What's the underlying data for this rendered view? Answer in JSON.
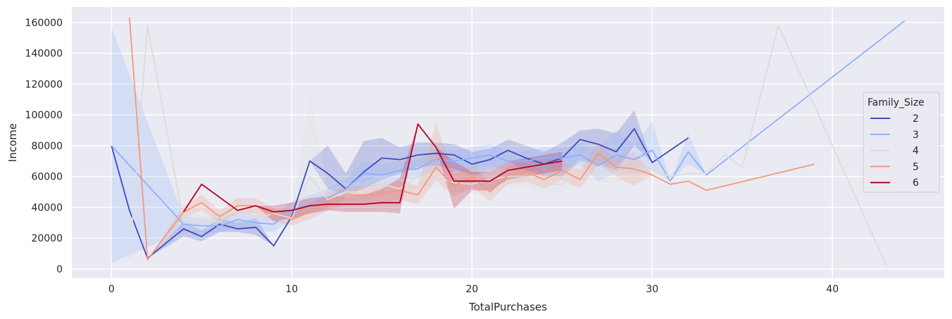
{
  "chart_data": {
    "type": "line",
    "xlabel": "TotalPurchases",
    "ylabel": "Income",
    "xlim": [
      -2.2,
      46.2
    ],
    "ylim": [
      -6000,
      170000
    ],
    "xticks": [
      0,
      10,
      20,
      30,
      40
    ],
    "yticks": [
      0,
      20000,
      40000,
      60000,
      80000,
      100000,
      120000,
      140000,
      160000
    ],
    "grid": true,
    "legend": {
      "title": "Family_Size",
      "placement": "right"
    },
    "series": [
      {
        "name": "2",
        "color": "#3b4cc0",
        "x": [
          0,
          1,
          2,
          4,
          5,
          6,
          7,
          8,
          9,
          10,
          11,
          12,
          13,
          14,
          15,
          16,
          17,
          18,
          19,
          20,
          21,
          22,
          23,
          24,
          25,
          26,
          27,
          28,
          29,
          30,
          31,
          32
        ],
        "y": [
          80000,
          38000,
          7000,
          26000,
          21000,
          29000,
          26000,
          27000,
          15000,
          34000,
          70000,
          62000,
          52000,
          63000,
          72000,
          71000,
          74000,
          75000,
          74000,
          68000,
          71000,
          77000,
          72000,
          68000,
          72000,
          84000,
          81000,
          76000,
          91000,
          69000,
          77000,
          85000
        ],
        "lower": [
          80000,
          38000,
          7000,
          21000,
          18000,
          24000,
          24000,
          22000,
          15000,
          34000,
          70000,
          52000,
          48000,
          52000,
          58000,
          62000,
          66000,
          67000,
          65000,
          61000,
          63000,
          70000,
          64000,
          60000,
          60000,
          70000,
          68000,
          64000,
          80000,
          69000,
          77000,
          85000
        ],
        "upper": [
          80000,
          38000,
          7000,
          31000,
          25000,
          33000,
          30000,
          33000,
          15000,
          34000,
          70000,
          80000,
          62000,
          83000,
          85000,
          79000,
          82000,
          82000,
          81000,
          76000,
          78000,
          84000,
          80000,
          76000,
          82000,
          90000,
          91000,
          88000,
          103000,
          69000,
          77000,
          85000
        ]
      },
      {
        "name": "3",
        "color": "#8db0fe",
        "x": [
          0,
          4,
          5,
          6,
          7,
          8,
          9,
          10,
          12,
          13,
          14,
          15,
          16,
          17,
          18,
          19,
          20,
          21,
          22,
          23,
          24,
          25,
          26,
          27,
          28,
          29,
          30,
          31,
          32,
          33,
          44
        ],
        "y": [
          80000,
          29000,
          28000,
          28000,
          32000,
          30000,
          29000,
          38000,
          46000,
          52000,
          62000,
          61000,
          64000,
          65000,
          71000,
          70000,
          72000,
          74000,
          70000,
          70000,
          72000,
          72000,
          74000,
          67000,
          74000,
          71000,
          77000,
          57000,
          76000,
          61000,
          161000
        ],
        "lower": [
          4000,
          24000,
          23000,
          24000,
          27000,
          25000,
          24000,
          32000,
          40000,
          46000,
          54000,
          54000,
          58000,
          59000,
          64000,
          63000,
          65000,
          67000,
          64000,
          63000,
          65000,
          66000,
          67000,
          57000,
          62000,
          62000,
          64000,
          57000,
          68000,
          61000,
          161000
        ],
        "upper": [
          157000,
          34000,
          33000,
          33000,
          37000,
          35000,
          34000,
          44000,
          52000,
          58000,
          70000,
          68000,
          70000,
          71000,
          78000,
          77000,
          79000,
          81000,
          76000,
          77000,
          79000,
          78000,
          81000,
          77000,
          90000,
          80000,
          96000,
          57000,
          88000,
          61000,
          161000
        ]
      },
      {
        "name": "4",
        "color": "#dddddd",
        "x": [
          1,
          2,
          4,
          5,
          6,
          7,
          8,
          9,
          10,
          11,
          12,
          13,
          14,
          15,
          16,
          17,
          18,
          19,
          20,
          21,
          22,
          23,
          24,
          25,
          26,
          27,
          28,
          29,
          30,
          31,
          32,
          33,
          34,
          35,
          37,
          43
        ],
        "y": [
          7000,
          158000,
          30000,
          30000,
          31000,
          40000,
          33000,
          36000,
          33000,
          60000,
          45000,
          50000,
          50000,
          55000,
          52000,
          60000,
          60000,
          56000,
          55000,
          58000,
          60000,
          60000,
          55000,
          55000,
          65000,
          62000,
          62000,
          65000,
          65000,
          60000,
          62000,
          62000,
          74000,
          66000,
          158000,
          2000
        ],
        "lower": [
          7000,
          158000,
          25000,
          25000,
          27000,
          33000,
          28000,
          30000,
          28000,
          40000,
          40000,
          44000,
          44000,
          48000,
          46000,
          53000,
          53000,
          50000,
          49000,
          51000,
          54000,
          54000,
          49000,
          50000,
          58000,
          56000,
          56000,
          59000,
          59000,
          60000,
          62000,
          62000,
          74000,
          66000,
          158000,
          2000
        ],
        "upper": [
          7000,
          158000,
          35000,
          35000,
          36000,
          47000,
          38000,
          42000,
          38000,
          113000,
          51000,
          56000,
          56000,
          62000,
          58000,
          67000,
          67000,
          62000,
          61000,
          65000,
          66000,
          66000,
          61000,
          60000,
          72000,
          68000,
          68000,
          71000,
          71000,
          60000,
          62000,
          62000,
          74000,
          66000,
          158000,
          2000
        ]
      },
      {
        "name": "5",
        "color": "#f4987a",
        "x": [
          1,
          2,
          4,
          5,
          6,
          7,
          8,
          9,
          10,
          11,
          12,
          13,
          14,
          15,
          16,
          17,
          18,
          19,
          20,
          21,
          22,
          23,
          24,
          25,
          26,
          27,
          28,
          29,
          30,
          31,
          32,
          33,
          39
        ],
        "y": [
          163000,
          6000,
          37000,
          43000,
          34000,
          41000,
          41000,
          35000,
          32000,
          37000,
          44000,
          48000,
          48000,
          49000,
          51000,
          48000,
          66000,
          54000,
          60000,
          50000,
          61000,
          63000,
          58000,
          64000,
          58000,
          75000,
          66000,
          65000,
          61000,
          55000,
          57000,
          51000,
          68000
        ],
        "lower": [
          163000,
          6000,
          33000,
          38000,
          30000,
          36000,
          36000,
          31000,
          28000,
          32000,
          38000,
          42000,
          42000,
          43000,
          45000,
          42000,
          58000,
          47000,
          53000,
          44000,
          55000,
          57000,
          52000,
          58000,
          52000,
          68000,
          60000,
          54000,
          61000,
          55000,
          57000,
          51000,
          68000
        ],
        "upper": [
          163000,
          6000,
          41000,
          48000,
          38000,
          46000,
          46000,
          39000,
          36000,
          42000,
          50000,
          54000,
          54000,
          55000,
          57000,
          54000,
          95000,
          61000,
          67000,
          56000,
          67000,
          69000,
          64000,
          70000,
          64000,
          82000,
          72000,
          76000,
          61000,
          55000,
          57000,
          51000,
          68000
        ]
      },
      {
        "name": "6",
        "color": "#b40426",
        "x": [
          4,
          5,
          7,
          8,
          9,
          10,
          11,
          12,
          13,
          14,
          15,
          16,
          17,
          18,
          19,
          20,
          21,
          22,
          23,
          24,
          25
        ],
        "y": [
          37000,
          55000,
          38000,
          41000,
          37000,
          38000,
          41000,
          42000,
          42000,
          42000,
          43000,
          43000,
          94000,
          79000,
          57000,
          57000,
          57000,
          64000,
          66000,
          68000,
          70000
        ],
        "lower": [
          37000,
          55000,
          38000,
          41000,
          31000,
          33000,
          36000,
          38000,
          37000,
          37000,
          37000,
          36000,
          94000,
          79000,
          39000,
          51000,
          51000,
          58000,
          60000,
          62000,
          64000
        ],
        "upper": [
          37000,
          55000,
          38000,
          41000,
          41000,
          43000,
          46000,
          47000,
          47000,
          48000,
          52000,
          59000,
          94000,
          79000,
          70000,
          63000,
          63000,
          70000,
          72000,
          74000,
          76000
        ]
      }
    ]
  }
}
